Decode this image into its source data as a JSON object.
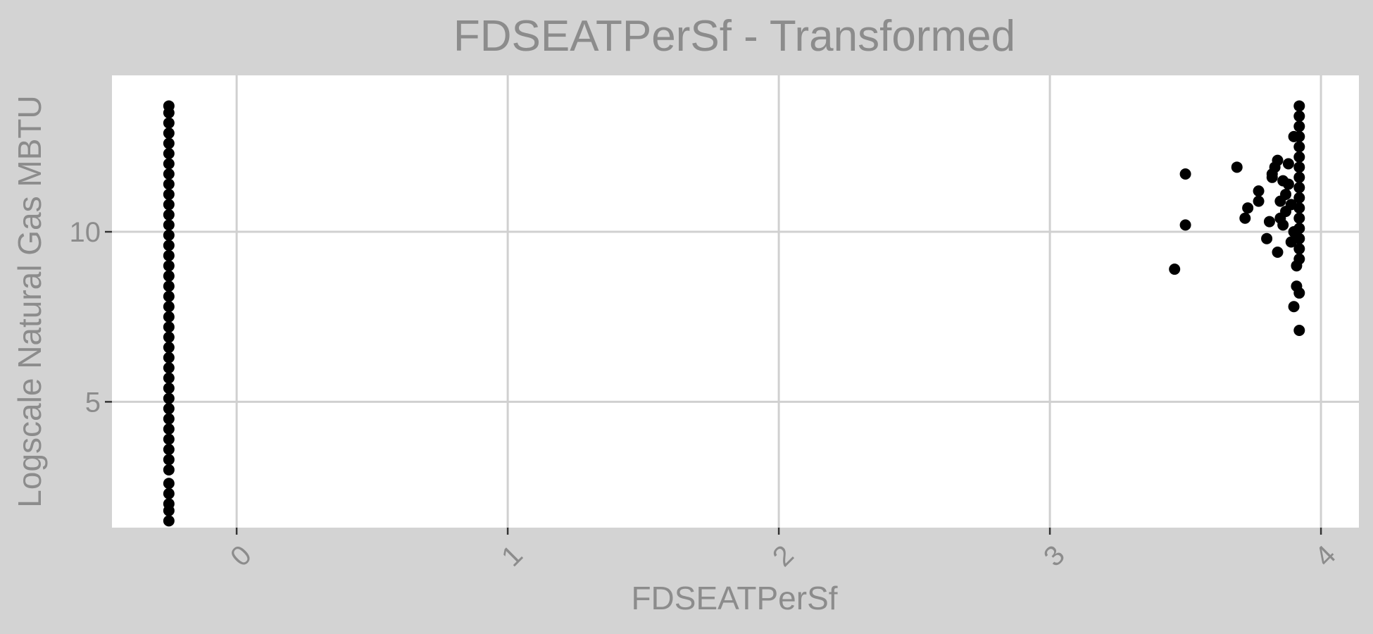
{
  "chart_data": {
    "type": "scatter",
    "title": "FDSEATPerSf - Transformed",
    "xlabel": "FDSEATPerSf",
    "ylabel": "Logscale Natural Gas MBTU",
    "xlim": [
      -0.46,
      4.14
    ],
    "ylim": [
      1.3,
      14.6
    ],
    "x_ticks": [
      0,
      1,
      2,
      3,
      4
    ],
    "y_ticks": [
      5,
      10
    ],
    "grid": true,
    "legend": "none",
    "point_color": "#000000",
    "series": [
      {
        "points": [
          [
            -0.25,
            1.5
          ],
          [
            -0.25,
            1.8
          ],
          [
            -0.25,
            2.0
          ],
          [
            -0.25,
            2.3
          ],
          [
            -0.25,
            2.6
          ],
          [
            -0.25,
            3.0
          ],
          [
            -0.25,
            3.3
          ],
          [
            -0.25,
            3.6
          ],
          [
            -0.25,
            3.9
          ],
          [
            -0.25,
            4.2
          ],
          [
            -0.25,
            4.5
          ],
          [
            -0.25,
            4.8
          ],
          [
            -0.25,
            5.1
          ],
          [
            -0.25,
            5.4
          ],
          [
            -0.25,
            5.7
          ],
          [
            -0.25,
            6.0
          ],
          [
            -0.25,
            6.3
          ],
          [
            -0.25,
            6.6
          ],
          [
            -0.25,
            6.9
          ],
          [
            -0.25,
            7.2
          ],
          [
            -0.25,
            7.5
          ],
          [
            -0.25,
            7.8
          ],
          [
            -0.25,
            8.1
          ],
          [
            -0.25,
            8.4
          ],
          [
            -0.25,
            8.7
          ],
          [
            -0.25,
            9.0
          ],
          [
            -0.25,
            9.3
          ],
          [
            -0.25,
            9.6
          ],
          [
            -0.25,
            9.9
          ],
          [
            -0.25,
            10.2
          ],
          [
            -0.25,
            10.5
          ],
          [
            -0.25,
            10.8
          ],
          [
            -0.25,
            11.1
          ],
          [
            -0.25,
            11.4
          ],
          [
            -0.25,
            11.7
          ],
          [
            -0.25,
            12.0
          ],
          [
            -0.25,
            12.3
          ],
          [
            -0.25,
            12.6
          ],
          [
            -0.25,
            12.9
          ],
          [
            -0.25,
            13.2
          ],
          [
            -0.25,
            13.5
          ],
          [
            -0.25,
            13.7
          ],
          [
            3.46,
            8.9
          ],
          [
            3.5,
            10.2
          ],
          [
            3.5,
            11.7
          ],
          [
            3.69,
            11.9
          ],
          [
            3.72,
            10.4
          ],
          [
            3.73,
            10.7
          ],
          [
            3.77,
            10.9
          ],
          [
            3.77,
            11.2
          ],
          [
            3.8,
            9.8
          ],
          [
            3.81,
            10.3
          ],
          [
            3.82,
            11.6
          ],
          [
            3.82,
            11.7
          ],
          [
            3.83,
            11.9
          ],
          [
            3.84,
            12.1
          ],
          [
            3.84,
            9.4
          ],
          [
            3.85,
            10.4
          ],
          [
            3.85,
            10.9
          ],
          [
            3.86,
            10.2
          ],
          [
            3.86,
            11.5
          ],
          [
            3.87,
            10.6
          ],
          [
            3.87,
            11.1
          ],
          [
            3.88,
            11.4
          ],
          [
            3.88,
            12.0
          ],
          [
            3.89,
            9.7
          ],
          [
            3.89,
            10.8
          ],
          [
            3.9,
            10.0
          ],
          [
            3.9,
            7.8
          ],
          [
            3.9,
            12.8
          ],
          [
            3.91,
            9.0
          ],
          [
            3.91,
            8.4
          ],
          [
            3.92,
            8.2
          ],
          [
            3.92,
            7.1
          ],
          [
            3.92,
            9.2
          ],
          [
            3.92,
            9.5
          ],
          [
            3.92,
            9.8
          ],
          [
            3.92,
            10.1
          ],
          [
            3.92,
            10.4
          ],
          [
            3.92,
            10.7
          ],
          [
            3.92,
            11.0
          ],
          [
            3.92,
            11.3
          ],
          [
            3.92,
            11.6
          ],
          [
            3.92,
            11.9
          ],
          [
            3.92,
            12.2
          ],
          [
            3.92,
            12.5
          ],
          [
            3.92,
            12.8
          ],
          [
            3.92,
            13.1
          ],
          [
            3.92,
            13.4
          ],
          [
            3.92,
            13.7
          ]
        ]
      }
    ]
  }
}
